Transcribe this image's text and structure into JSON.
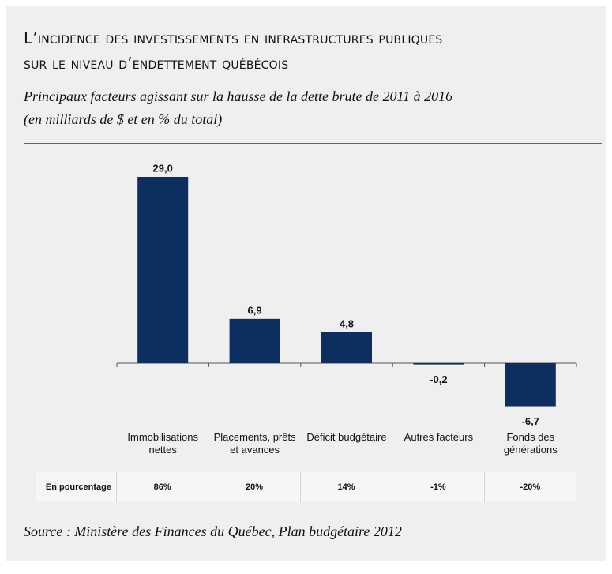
{
  "chart_data": {
    "type": "bar",
    "title": [
      "L’incidence des investissements en infrastructures publiques",
      "sur le niveau d’endettement québécois"
    ],
    "subtitle": [
      "Principaux facteurs agissant sur la hausse de la dette brute de 2011 à 2016",
      "(en milliards de $ et en % du total)"
    ],
    "categories": [
      "Immobilisations nettes",
      "Placements, prêts et avances",
      "Déficit budgétaire",
      "Autres facteurs",
      "Fonds des générations"
    ],
    "values": [
      29.0,
      6.9,
      4.8,
      -0.2,
      -6.7
    ],
    "value_labels": [
      "29,0",
      "6,9",
      "4,8",
      "-0,2",
      "-6,7"
    ],
    "color": "#0c2f5f",
    "percent_row": {
      "label": "En pourcentage",
      "cells": [
        "86%",
        "20%",
        "14%",
        "-1%",
        "-20%"
      ]
    },
    "source": "Source : Ministère des Finances du Québec, Plan budgétaire 2012"
  }
}
